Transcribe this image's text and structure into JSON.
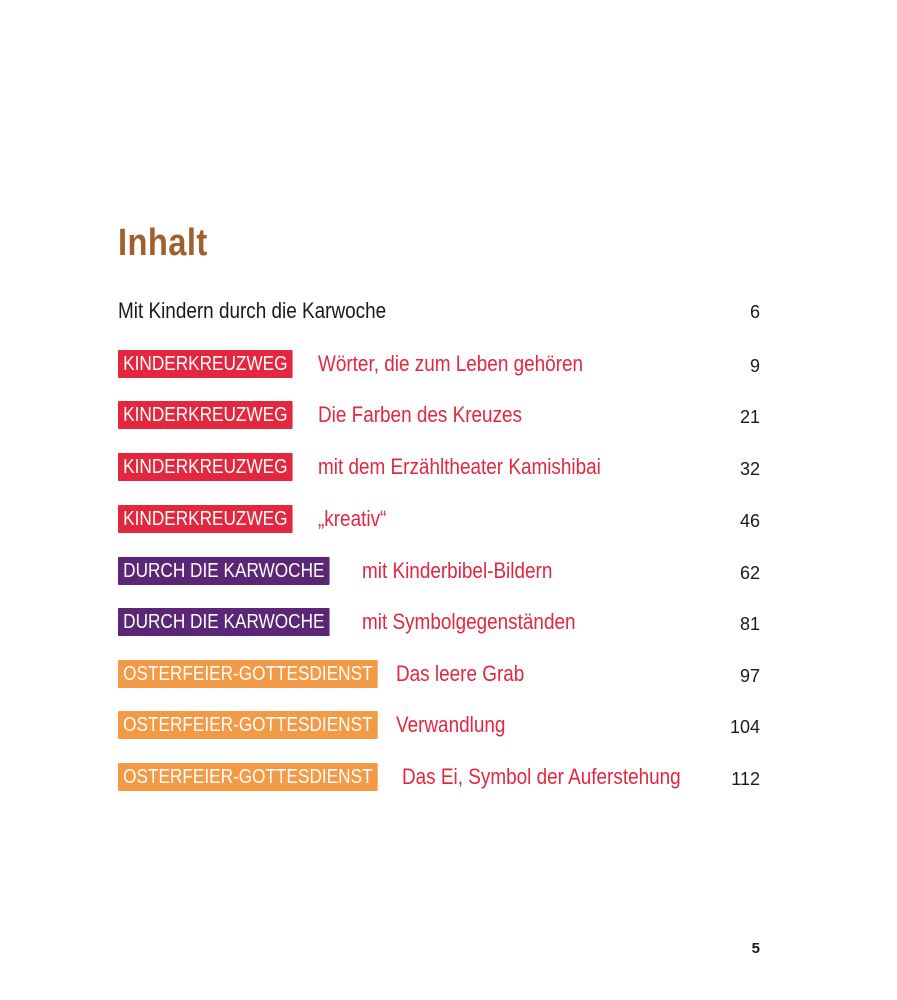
{
  "title": "Inhalt",
  "intro": {
    "label": "Mit Kindern durch die Karwoche",
    "page": "6"
  },
  "entries": [
    {
      "tag": "KINDERKREUZWEG",
      "text": "Wörter, die zum Leben gehören",
      "page": "9"
    },
    {
      "tag": "KINDERKREUZWEG",
      "text": "Die Farben des Kreuzes",
      "page": "21"
    },
    {
      "tag": "KINDERKREUZWEG",
      "text": "mit dem Erzähltheater Kamishibai",
      "page": "32"
    },
    {
      "tag": "KINDERKREUZWEG",
      "text": "„kreativ“",
      "page": "46"
    },
    {
      "tag": "DURCH DIE KARWOCHE",
      "text": "mit Kinderbibel-Bildern",
      "page": "62"
    },
    {
      "tag": "DURCH DIE KARWOCHE",
      "text": "mit Symbolgegenständen",
      "page": "81"
    },
    {
      "tag": "OSTERFEIER-GOTTESDIENST",
      "text": "Das leere Grab",
      "page": "97"
    },
    {
      "tag": "OSTERFEIER-GOTTESDIENST",
      "text": "Verwandlung",
      "page": "104"
    },
    {
      "tag": "OSTERFEIER-GOTTESDIENST",
      "text": "Das Ei, Symbol der Auferstehung",
      "page": "112"
    }
  ],
  "folio": "5",
  "colors": {
    "title": "#a0602c",
    "red": "#e3273f",
    "purple": "#5b2675",
    "orange": "#f39a46"
  }
}
